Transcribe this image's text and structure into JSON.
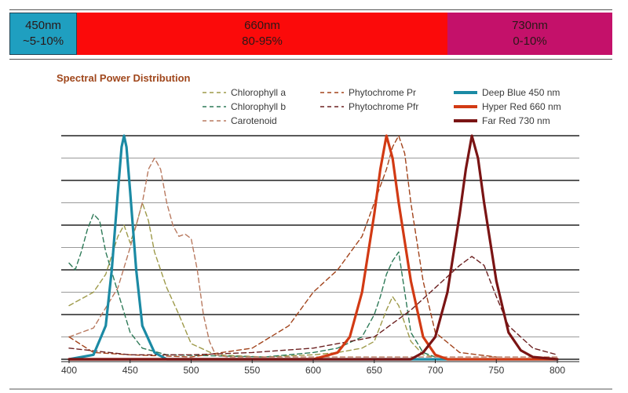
{
  "bands": [
    {
      "wavelength": "450nm",
      "share": "~5-10%",
      "color": "#1f9fc0"
    },
    {
      "wavelength": "660nm",
      "share": "80-95%",
      "color": "#fb0a0a"
    },
    {
      "wavelength": "730nm",
      "share": "0-10%",
      "color": "#c4116a"
    }
  ],
  "chart_data": {
    "type": "line",
    "title": "Spectral Power Distribution",
    "xlabel": "",
    "ylabel": "",
    "xlim": [
      400,
      800
    ],
    "ylim": [
      0,
      1
    ],
    "x_ticks": [
      400,
      450,
      500,
      550,
      600,
      650,
      700,
      750,
      800
    ],
    "grid": "horizontal",
    "legend_position": "top-right",
    "series": [
      {
        "name": "Chlorophyll a",
        "style": "dashed",
        "color": "#9e9a4a",
        "points": [
          [
            400,
            0.24
          ],
          [
            410,
            0.27
          ],
          [
            420,
            0.3
          ],
          [
            430,
            0.38
          ],
          [
            440,
            0.55
          ],
          [
            445,
            0.6
          ],
          [
            450,
            0.52
          ],
          [
            455,
            0.6
          ],
          [
            460,
            0.7
          ],
          [
            465,
            0.62
          ],
          [
            470,
            0.48
          ],
          [
            480,
            0.32
          ],
          [
            490,
            0.2
          ],
          [
            500,
            0.07
          ],
          [
            520,
            0.02
          ],
          [
            560,
            0.01
          ],
          [
            600,
            0.02
          ],
          [
            620,
            0.03
          ],
          [
            640,
            0.05
          ],
          [
            650,
            0.08
          ],
          [
            660,
            0.22
          ],
          [
            665,
            0.28
          ],
          [
            670,
            0.24
          ],
          [
            680,
            0.08
          ],
          [
            690,
            0.02
          ],
          [
            700,
            0.01
          ]
        ]
      },
      {
        "name": "Chlorophyll b",
        "style": "dashed",
        "color": "#2e7a58",
        "points": [
          [
            400,
            0.43
          ],
          [
            405,
            0.4
          ],
          [
            410,
            0.48
          ],
          [
            415,
            0.58
          ],
          [
            420,
            0.65
          ],
          [
            425,
            0.62
          ],
          [
            430,
            0.48
          ],
          [
            440,
            0.3
          ],
          [
            450,
            0.12
          ],
          [
            460,
            0.05
          ],
          [
            480,
            0.02
          ],
          [
            560,
            0.01
          ],
          [
            600,
            0.03
          ],
          [
            620,
            0.05
          ],
          [
            640,
            0.1
          ],
          [
            650,
            0.2
          ],
          [
            655,
            0.28
          ],
          [
            660,
            0.38
          ],
          [
            665,
            0.44
          ],
          [
            670,
            0.48
          ],
          [
            675,
            0.3
          ],
          [
            680,
            0.12
          ],
          [
            690,
            0.03
          ],
          [
            700,
            0.01
          ]
        ]
      },
      {
        "name": "Carotenoid",
        "style": "dashed",
        "color": "#b97a60",
        "points": [
          [
            400,
            0.1
          ],
          [
            420,
            0.14
          ],
          [
            440,
            0.32
          ],
          [
            450,
            0.5
          ],
          [
            460,
            0.7
          ],
          [
            465,
            0.85
          ],
          [
            470,
            0.9
          ],
          [
            475,
            0.85
          ],
          [
            480,
            0.7
          ],
          [
            485,
            0.6
          ],
          [
            490,
            0.55
          ],
          [
            495,
            0.56
          ],
          [
            500,
            0.54
          ],
          [
            505,
            0.4
          ],
          [
            510,
            0.2
          ],
          [
            515,
            0.08
          ],
          [
            520,
            0.02
          ],
          [
            530,
            0.01
          ],
          [
            800,
            0.01
          ]
        ]
      },
      {
        "name": "Phytochrome Pr",
        "style": "dashed",
        "color": "#a2441c",
        "points": [
          [
            400,
            0.1
          ],
          [
            420,
            0.03
          ],
          [
            450,
            0.02
          ],
          [
            500,
            0.01
          ],
          [
            550,
            0.05
          ],
          [
            580,
            0.15
          ],
          [
            600,
            0.3
          ],
          [
            620,
            0.4
          ],
          [
            640,
            0.55
          ],
          [
            650,
            0.7
          ],
          [
            660,
            0.85
          ],
          [
            665,
            0.95
          ],
          [
            670,
            1.0
          ],
          [
            675,
            0.92
          ],
          [
            680,
            0.7
          ],
          [
            690,
            0.35
          ],
          [
            700,
            0.12
          ],
          [
            720,
            0.03
          ],
          [
            750,
            0.01
          ]
        ]
      },
      {
        "name": "Phytochrome Pfr",
        "style": "dashed",
        "color": "#6b2020",
        "points": [
          [
            400,
            0.05
          ],
          [
            450,
            0.02
          ],
          [
            500,
            0.02
          ],
          [
            550,
            0.03
          ],
          [
            600,
            0.05
          ],
          [
            650,
            0.1
          ],
          [
            680,
            0.22
          ],
          [
            700,
            0.32
          ],
          [
            720,
            0.42
          ],
          [
            730,
            0.46
          ],
          [
            740,
            0.42
          ],
          [
            750,
            0.28
          ],
          [
            760,
            0.15
          ],
          [
            780,
            0.05
          ],
          [
            800,
            0.02
          ]
        ]
      },
      {
        "name": "Deep Blue 450 nm",
        "style": "solid",
        "color": "#1b8aa4",
        "points": [
          [
            400,
            0.0
          ],
          [
            420,
            0.02
          ],
          [
            430,
            0.15
          ],
          [
            435,
            0.4
          ],
          [
            440,
            0.75
          ],
          [
            443,
            0.95
          ],
          [
            445,
            1.0
          ],
          [
            447,
            0.95
          ],
          [
            450,
            0.75
          ],
          [
            455,
            0.4
          ],
          [
            460,
            0.15
          ],
          [
            470,
            0.03
          ],
          [
            480,
            0.0
          ],
          [
            800,
            0.0
          ]
        ]
      },
      {
        "name": "Hyper Red 660 nm",
        "style": "solid",
        "color": "#d23a14",
        "points": [
          [
            400,
            0.0
          ],
          [
            600,
            0.0
          ],
          [
            620,
            0.03
          ],
          [
            630,
            0.1
          ],
          [
            640,
            0.3
          ],
          [
            650,
            0.65
          ],
          [
            655,
            0.85
          ],
          [
            660,
            1.0
          ],
          [
            665,
            0.9
          ],
          [
            670,
            0.7
          ],
          [
            680,
            0.35
          ],
          [
            690,
            0.1
          ],
          [
            700,
            0.02
          ],
          [
            710,
            0.0
          ],
          [
            800,
            0.0
          ]
        ]
      },
      {
        "name": "Far Red 730 nm",
        "style": "solid",
        "color": "#7a1414",
        "points": [
          [
            400,
            0.0
          ],
          [
            680,
            0.0
          ],
          [
            690,
            0.03
          ],
          [
            700,
            0.1
          ],
          [
            710,
            0.3
          ],
          [
            720,
            0.65
          ],
          [
            725,
            0.85
          ],
          [
            730,
            1.0
          ],
          [
            735,
            0.9
          ],
          [
            740,
            0.7
          ],
          [
            750,
            0.35
          ],
          [
            760,
            0.12
          ],
          [
            770,
            0.04
          ],
          [
            780,
            0.01
          ],
          [
            800,
            0.0
          ]
        ]
      }
    ]
  }
}
